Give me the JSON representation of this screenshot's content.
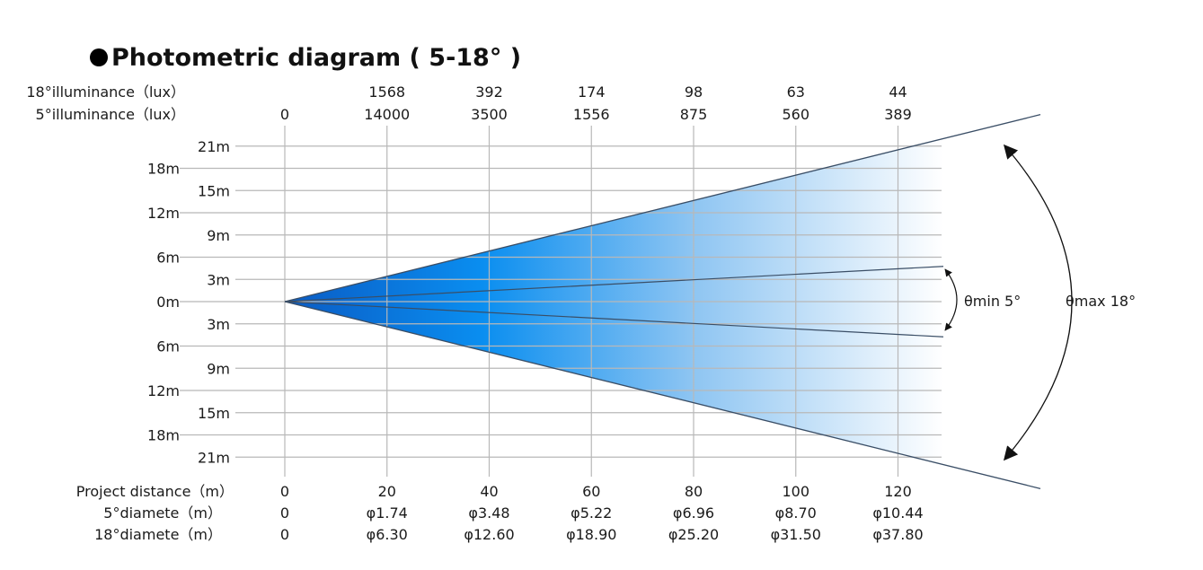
{
  "title": "Photometric diagram ( 5-18° )",
  "chart_data": {
    "type": "photometric-beam",
    "title": "Photometric diagram ( 5-18° )",
    "distances": [
      0,
      20,
      40,
      60,
      80,
      100,
      120
    ],
    "row_labels": {
      "illum18": "18°illuminance（lux）",
      "illum5": "5°illuminance（lux）",
      "distance": "Project distance（m）",
      "diam5": "5°diamete（m）",
      "diam18": "18°diamete（m）"
    },
    "illuminance_18": [
      "",
      "1568",
      "392",
      "174",
      "98",
      "63",
      "44"
    ],
    "illuminance_5": [
      "0",
      "14000",
      "3500",
      "1556",
      "875",
      "560",
      "389"
    ],
    "distance_labels": [
      "0",
      "20",
      "40",
      "60",
      "80",
      "100",
      "120"
    ],
    "diameter_5": [
      "0",
      "φ1.74",
      "φ3.48",
      "φ5.22",
      "φ6.96",
      "φ8.70",
      "φ10.44"
    ],
    "diameter_18": [
      "0",
      "φ6.30",
      "φ12.60",
      "φ18.90",
      "φ25.20",
      "φ31.50",
      "φ37.80"
    ],
    "y_ticks_left": [
      "18m",
      "12m",
      "6m",
      "0m",
      "6m",
      "12m",
      "18m"
    ],
    "y_ticks_right": [
      "21m",
      "15m",
      "9m",
      "3m",
      "3m",
      "9m",
      "15m",
      "21m"
    ],
    "y_range_m": [
      -21,
      21
    ],
    "theta_min_label": "θmin 5°",
    "theta_max_label": "θmax 18°",
    "beam_angle_min_deg": 5,
    "beam_angle_max_deg": 18,
    "colors": {
      "beam_dark": "#0a5bc4",
      "beam_mid": "#0a8ef0",
      "beam_light": "#ffffff",
      "grid": "#b8b8b8",
      "edge": "#3a4e66"
    }
  }
}
